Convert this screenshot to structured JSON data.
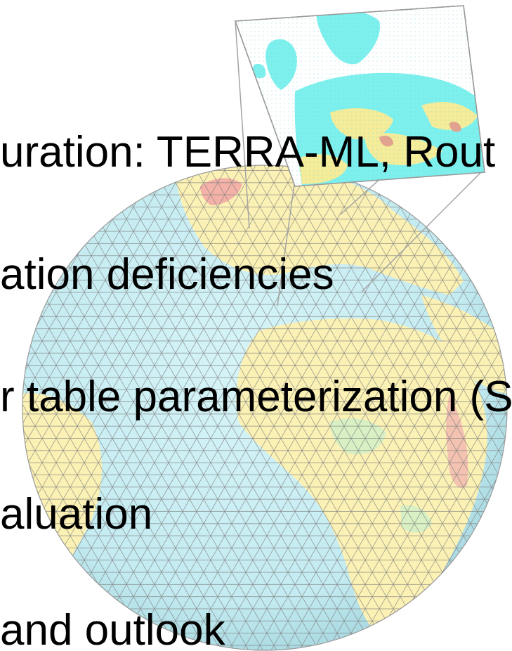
{
  "slide": {
    "lines": [
      "uration: TERRA-ML, Rout",
      "ation deficiencies",
      "r table parameterization (S",
      "aluation",
      "and outlook"
    ]
  },
  "colors": {
    "ocean": "#c7eef4",
    "land": "#fbf1b4",
    "grid": "#8a8a8a",
    "inset_ocean": "#ffffff",
    "inset_land": "#7df0ee"
  }
}
